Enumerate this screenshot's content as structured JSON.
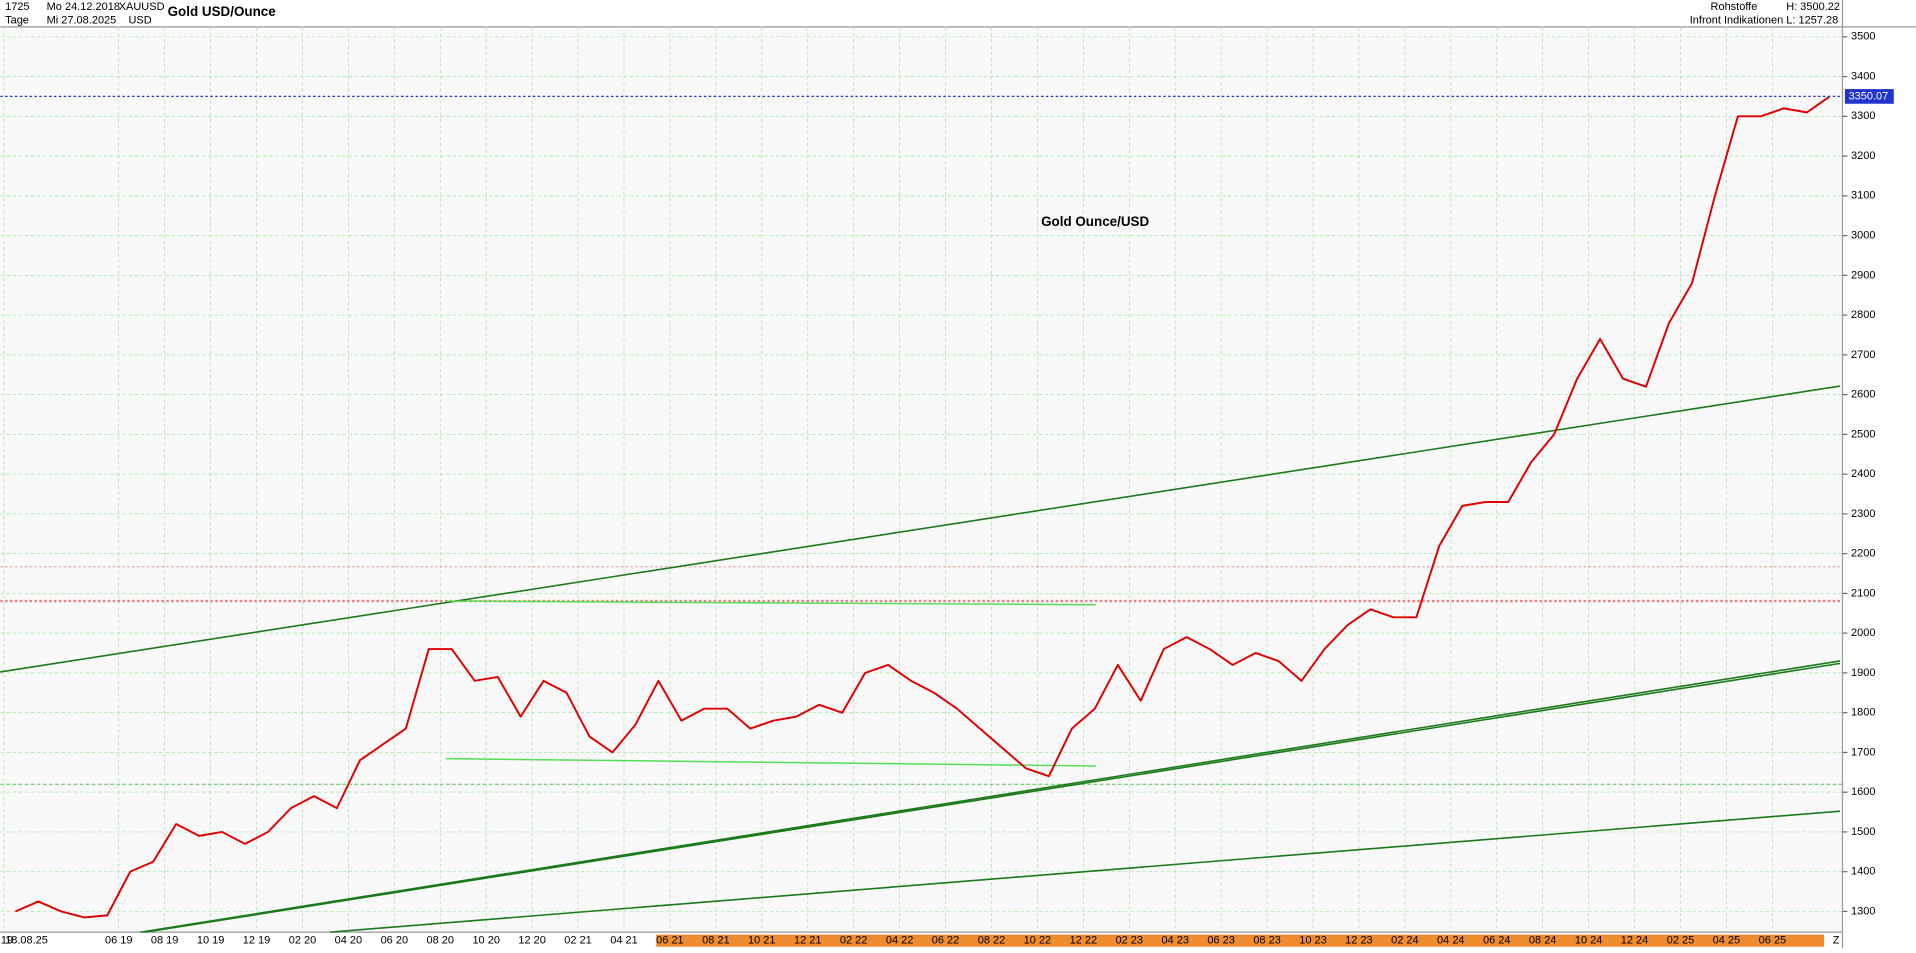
{
  "header": {
    "bars": "1725",
    "from": "Mo 24.12.2018",
    "period": "Tage",
    "to": "Mi 27.08.2025",
    "symbol": "XAUUSD",
    "currency": "USD",
    "group": "Rohstoffe",
    "source": "Infront Indikationen",
    "high": "H: 3500.22",
    "low": "L: 1257.28",
    "left_date": "18.08.25",
    "zoom": "Z"
  },
  "chart_data": {
    "type": "line",
    "title": "Gold USD/Ounce",
    "annotation": "Gold Ounce/USD",
    "categories": [
      "I 19",
      null,
      null,
      null,
      null,
      "06 19",
      null,
      "08 19",
      null,
      "10 19",
      null,
      "12 19",
      null,
      "02 20",
      null,
      "04 20",
      null,
      "06 20",
      null,
      "08 20",
      null,
      "10 20",
      null,
      "12 20",
      null,
      "02 21",
      null,
      "04 21",
      null,
      "06 21",
      null,
      "08 21",
      null,
      "10 21",
      null,
      "12 21",
      null,
      "02 22",
      null,
      "04 22",
      null,
      "06 22",
      null,
      "08 22",
      null,
      "10 22",
      null,
      "12 22",
      null,
      "02 23",
      null,
      "04 23",
      null,
      "06 23",
      null,
      "08 23",
      null,
      "10 23",
      null,
      "12 23",
      null,
      "02 24",
      null,
      "04 24",
      null,
      "06 24",
      null,
      "08 24",
      null,
      "10 24",
      null,
      "12 24",
      null,
      "02 25",
      null,
      "04 25",
      null,
      "06 25",
      null,
      null
    ],
    "series": [
      {
        "name": "XAUUSD",
        "color": "#e00000",
        "values": [
          1300,
          1325,
          1300,
          1285,
          1290,
          1400,
          1425,
          1520,
          1490,
          1500,
          1470,
          1500,
          1560,
          1590,
          1560,
          1680,
          1720,
          1760,
          1960,
          1960,
          1880,
          1890,
          1790,
          1880,
          1850,
          1740,
          1700,
          1770,
          1880,
          1780,
          1810,
          1810,
          1760,
          1780,
          1790,
          1820,
          1800,
          1900,
          1920,
          1880,
          1850,
          1810,
          1760,
          1710,
          1660,
          1640,
          1760,
          1810,
          1920,
          1830,
          1960,
          1990,
          1960,
          1920,
          1950,
          1930,
          1880,
          1960,
          2020,
          2060,
          2040,
          2040,
          2220,
          2320,
          2330,
          2330,
          2430,
          2500,
          2640,
          2740,
          2640,
          2620,
          2780,
          2880,
          3100,
          3300,
          3300,
          3320,
          3310,
          3350
        ]
      }
    ],
    "ylim": [
      1248,
      3525
    ],
    "yticks": [
      1300,
      1400,
      1500,
      1600,
      1700,
      1800,
      1900,
      2000,
      2100,
      2200,
      2300,
      2400,
      2500,
      2600,
      2700,
      2800,
      2900,
      3000,
      3100,
      3200,
      3300,
      3400,
      3500
    ],
    "last_price": 3350.07,
    "grid": true
  }
}
